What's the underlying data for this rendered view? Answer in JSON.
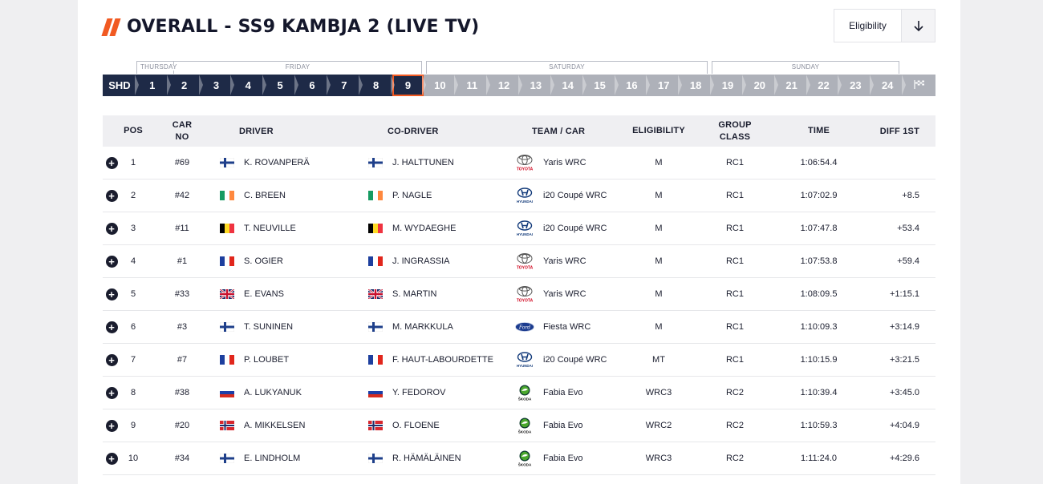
{
  "header": {
    "title": "OVERALL - SS9 KAMBJA 2 (LIVE TV)",
    "eligibility_label": "Eligibility"
  },
  "days": [
    {
      "label": "THURSDAY"
    },
    {
      "label": "FRIDAY"
    },
    {
      "label": "SATURDAY"
    },
    {
      "label": "SUNDAY"
    }
  ],
  "stages": [
    {
      "label": "SHD",
      "state": "done"
    },
    {
      "label": "1",
      "state": "done"
    },
    {
      "label": "2",
      "state": "done"
    },
    {
      "label": "3",
      "state": "done"
    },
    {
      "label": "4",
      "state": "done"
    },
    {
      "label": "5",
      "state": "done"
    },
    {
      "label": "6",
      "state": "done"
    },
    {
      "label": "7",
      "state": "done"
    },
    {
      "label": "8",
      "state": "done"
    },
    {
      "label": "9",
      "state": "current"
    },
    {
      "label": "10",
      "state": "future"
    },
    {
      "label": "11",
      "state": "future"
    },
    {
      "label": "12",
      "state": "future"
    },
    {
      "label": "13",
      "state": "future"
    },
    {
      "label": "14",
      "state": "future"
    },
    {
      "label": "15",
      "state": "future"
    },
    {
      "label": "16",
      "state": "future"
    },
    {
      "label": "17",
      "state": "future"
    },
    {
      "label": "18",
      "state": "future"
    },
    {
      "label": "19",
      "state": "future"
    },
    {
      "label": "20",
      "state": "future"
    },
    {
      "label": "21",
      "state": "future"
    },
    {
      "label": "22",
      "state": "future"
    },
    {
      "label": "23",
      "state": "future"
    },
    {
      "label": "24",
      "state": "future"
    },
    {
      "label": "",
      "state": "future",
      "icon": "finish-flag-icon"
    }
  ],
  "columns": {
    "pos": "POS",
    "car_no": "CAR NO",
    "driver": "DRIVER",
    "co_driver": "CO-DRIVER",
    "team_car": "TEAM / CAR",
    "eligibility": "ELIGIBILITY",
    "group_class": "GROUP CLASS",
    "time": "TIME",
    "diff": "DIFF 1ST"
  },
  "rows": [
    {
      "pos": "1",
      "car": "#69",
      "flag": "fin",
      "driver": "K. ROVANPERÄ",
      "co_driver": "J. HALTTUNEN",
      "brand": "toyota",
      "car_model": "Yaris WRC",
      "elig": "M",
      "group": "RC1",
      "time": "1:06:54.4",
      "diff": ""
    },
    {
      "pos": "2",
      "car": "#42",
      "flag": "irl",
      "driver": "C. BREEN",
      "co_driver": "P. NAGLE",
      "brand": "hyundai",
      "car_model": "i20 Coupé WRC",
      "elig": "M",
      "group": "RC1",
      "time": "1:07:02.9",
      "diff": "+8.5"
    },
    {
      "pos": "3",
      "car": "#11",
      "flag": "bel",
      "driver": "T. NEUVILLE",
      "co_driver": "M. WYDAEGHE",
      "brand": "hyundai",
      "car_model": "i20 Coupé WRC",
      "elig": "M",
      "group": "RC1",
      "time": "1:07:47.8",
      "diff": "+53.4"
    },
    {
      "pos": "4",
      "car": "#1",
      "flag": "fra",
      "driver": "S. OGIER",
      "co_driver": "J. INGRASSIA",
      "brand": "toyota",
      "car_model": "Yaris WRC",
      "elig": "M",
      "group": "RC1",
      "time": "1:07:53.8",
      "diff": "+59.4"
    },
    {
      "pos": "5",
      "car": "#33",
      "flag": "gbr",
      "driver": "E. EVANS",
      "co_driver": "S. MARTIN",
      "brand": "toyota",
      "car_model": "Yaris WRC",
      "elig": "M",
      "group": "RC1",
      "time": "1:08:09.5",
      "diff": "+1:15.1"
    },
    {
      "pos": "6",
      "car": "#3",
      "flag": "fin",
      "driver": "T. SUNINEN",
      "co_driver": "M. MARKKULA",
      "brand": "ford",
      "car_model": "Fiesta WRC",
      "elig": "M",
      "group": "RC1",
      "time": "1:10:09.3",
      "diff": "+3:14.9"
    },
    {
      "pos": "7",
      "car": "#7",
      "flag": "fra",
      "driver": "P. LOUBET",
      "co_driver": "F. HAUT-LABOURDETTE",
      "brand": "hyundai",
      "car_model": "i20 Coupé WRC",
      "elig": "MT",
      "group": "RC1",
      "time": "1:10:15.9",
      "diff": "+3:21.5"
    },
    {
      "pos": "8",
      "car": "#38",
      "flag": "rus",
      "driver": "A. LUKYANUK",
      "co_driver": "Y. FEDOROV",
      "brand": "skoda",
      "car_model": "Fabia Evo",
      "elig": "WRC3",
      "group": "RC2",
      "time": "1:10:39.4",
      "diff": "+3:45.0"
    },
    {
      "pos": "9",
      "car": "#20",
      "flag": "nor",
      "driver": "A. MIKKELSEN",
      "co_driver": "O. FLOENE",
      "brand": "skoda",
      "car_model": "Fabia Evo",
      "elig": "WRC2",
      "group": "RC2",
      "time": "1:10:59.3",
      "diff": "+4:04.9"
    },
    {
      "pos": "10",
      "car": "#34",
      "flag": "fin",
      "driver": "E. LINDHOLM",
      "co_driver": "R. HÄMÄLÄINEN",
      "brand": "skoda",
      "car_model": "Fabia Evo",
      "elig": "WRC3",
      "group": "RC2",
      "time": "1:11:24.0",
      "diff": "+4:29.6"
    }
  ],
  "brand_labels": {
    "toyota": "TOYOTA",
    "hyundai": "HYUNDAI",
    "skoda": "ŠKODA"
  },
  "colors": {
    "accent": "#f15a22",
    "navy": "#1e2a47",
    "future": "#aeb1b9"
  }
}
